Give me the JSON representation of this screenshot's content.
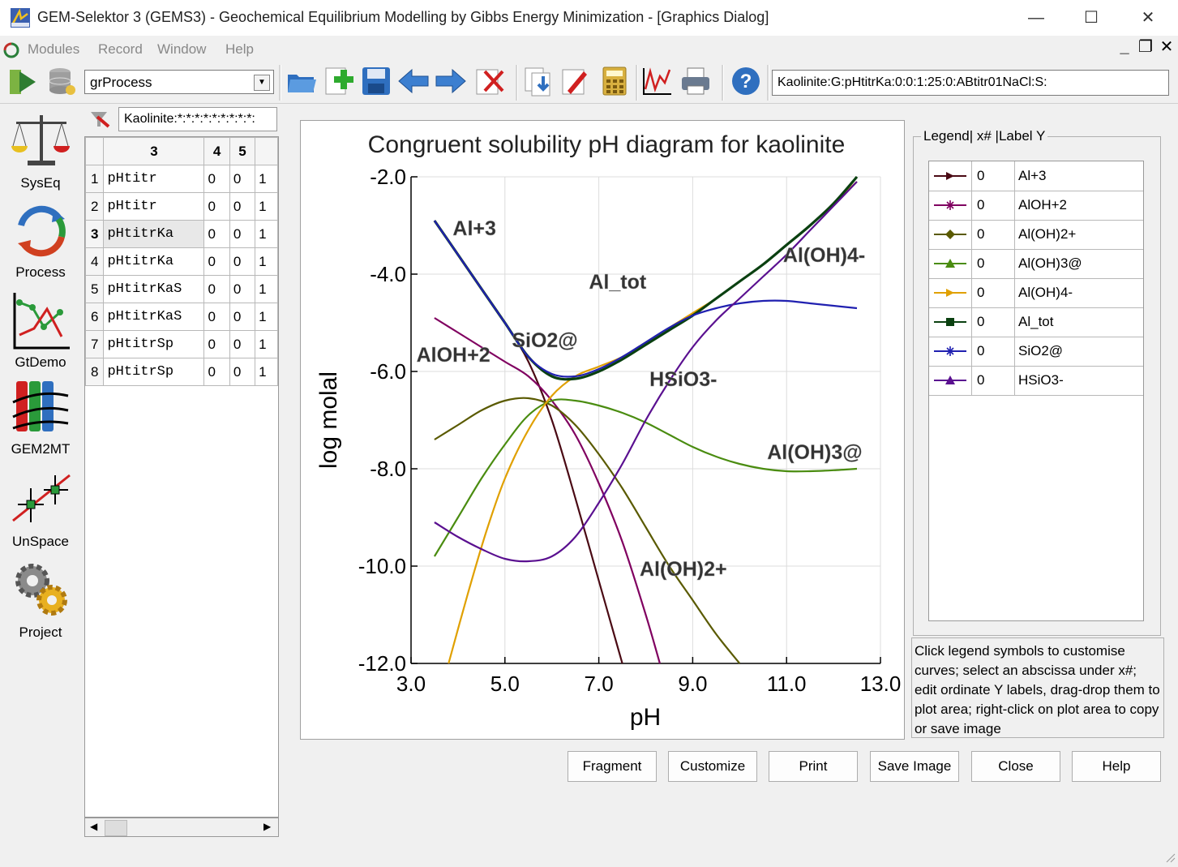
{
  "window": {
    "title": "GEM-Selektor 3 (GEMS3) - Geochemical Equilibrium Modelling by Gibbs Energy Minimization - [Graphics Dialog]",
    "minimize": "—",
    "maximize": "☐",
    "close": "✕"
  },
  "menu": [
    "Modules",
    "Record",
    "Window",
    "Help"
  ],
  "toolbar": {
    "module_select": "grProcess",
    "record_key": "Kaolinite:G:pHtitrKa:0:0:1:25:0:ABtitr01NaCl:S:"
  },
  "nav": [
    {
      "label": "SysEq",
      "icon": "balance-scale-icon"
    },
    {
      "label": "Process",
      "icon": "process-cycle-icon"
    },
    {
      "label": "GtDemo",
      "icon": "gtdemo-chart-icon"
    },
    {
      "label": "GEM2MT",
      "icon": "gem2mt-columns-icon"
    },
    {
      "label": "UnSpace",
      "icon": "unspace-icon"
    },
    {
      "label": "Project",
      "icon": "gears-icon"
    }
  ],
  "records": {
    "filter": "Kaolinite:*:*:*:*:*:*:*:*:*:",
    "headers": [
      "3",
      "4",
      "5"
    ],
    "rows": [
      {
        "n": "1",
        "name": "pHtitr",
        "c4": "0",
        "c5": "0",
        "c6": "1"
      },
      {
        "n": "2",
        "name": "pHtitr",
        "c4": "0",
        "c5": "0",
        "c6": "1"
      },
      {
        "n": "3",
        "name": "pHtitrKa",
        "c4": "0",
        "c5": "0",
        "c6": "1"
      },
      {
        "n": "4",
        "name": "pHtitrKa",
        "c4": "0",
        "c5": "0",
        "c6": "1"
      },
      {
        "n": "5",
        "name": "pHtitrKaS",
        "c4": "0",
        "c5": "0",
        "c6": "1"
      },
      {
        "n": "6",
        "name": "pHtitrKaS",
        "c4": "0",
        "c5": "0",
        "c6": "1"
      },
      {
        "n": "7",
        "name": "pHtitrSp",
        "c4": "0",
        "c5": "0",
        "c6": "1"
      },
      {
        "n": "8",
        "name": "pHtitrSp",
        "c4": "0",
        "c5": "0",
        "c6": "1"
      }
    ]
  },
  "chart_data": {
    "type": "line",
    "title": "Congruent solubility pH diagram for kaolinite",
    "xlabel": "pH",
    "ylabel": "log molal",
    "xlim": [
      3.0,
      13.0
    ],
    "ylim": [
      -12.0,
      -2.0
    ],
    "xticks": [
      "3.0",
      "5.0",
      "7.0",
      "9.0",
      "11.0",
      "13.0"
    ],
    "yticks": [
      "-2.0",
      "-4.0",
      "-6.0",
      "-8.0",
      "-10.0",
      "-12.0"
    ],
    "grid": true,
    "series": [
      {
        "name": "Al+3",
        "color": "#4a0a14",
        "x": [
          3.5,
          4.0,
          4.5,
          5.0,
          5.5,
          6.0,
          6.5,
          7.0,
          7.5
        ],
        "y": [
          -2.9,
          -3.6,
          -4.3,
          -5.0,
          -5.8,
          -7.0,
          -8.6,
          -10.3,
          -12.0
        ]
      },
      {
        "name": "AlOH+2",
        "color": "#800060",
        "x": [
          3.5,
          4.0,
          4.5,
          5.0,
          5.5,
          6.0,
          6.5,
          7.0,
          7.5,
          8.0,
          8.3
        ],
        "y": [
          -4.9,
          -5.2,
          -5.5,
          -5.8,
          -6.1,
          -6.6,
          -7.3,
          -8.3,
          -9.5,
          -11.0,
          -12.0
        ]
      },
      {
        "name": "Al(OH)2+",
        "color": "#5a5a00",
        "x": [
          3.5,
          4.0,
          4.5,
          5.0,
          5.5,
          6.0,
          6.5,
          7.0,
          7.5,
          8.0,
          8.5,
          9.0,
          9.5,
          10.0
        ],
        "y": [
          -7.4,
          -7.1,
          -6.8,
          -6.6,
          -6.55,
          -6.7,
          -7.1,
          -7.7,
          -8.4,
          -9.2,
          -10.0,
          -10.7,
          -11.4,
          -12.0
        ]
      },
      {
        "name": "Al(OH)3@",
        "color": "#4a8c10",
        "x": [
          3.5,
          4.0,
          4.5,
          5.0,
          5.5,
          6.0,
          6.5,
          7.0,
          7.5,
          8.0,
          8.5,
          9.0,
          9.5,
          10.0,
          10.5,
          11.0,
          11.5,
          12.0,
          12.5
        ],
        "y": [
          -9.8,
          -9.0,
          -8.2,
          -7.5,
          -6.9,
          -6.6,
          -6.6,
          -6.7,
          -6.85,
          -7.05,
          -7.3,
          -7.55,
          -7.75,
          -7.9,
          -8.0,
          -8.05,
          -8.05,
          -8.03,
          -8.0
        ]
      },
      {
        "name": "Al(OH)4-",
        "color": "#e0a000",
        "x": [
          3.8,
          4.2,
          4.6,
          5.0,
          5.5,
          6.0,
          6.5,
          7.0,
          7.5,
          8.0,
          8.5,
          9.0,
          9.5,
          10.0,
          10.5,
          11.0,
          11.5,
          12.0,
          12.5
        ],
        "y": [
          -12.0,
          -10.6,
          -9.3,
          -8.2,
          -7.2,
          -6.5,
          -6.1,
          -5.9,
          -5.7,
          -5.4,
          -5.1,
          -4.8,
          -4.5,
          -4.15,
          -3.8,
          -3.4,
          -3.0,
          -2.55,
          -2.1
        ]
      },
      {
        "name": "Al_tot",
        "color": "#0a4010",
        "x": [
          3.5,
          4.0,
          4.5,
          5.0,
          5.5,
          6.0,
          6.5,
          7.0,
          7.5,
          8.0,
          8.5,
          9.0,
          9.5,
          10.0,
          10.5,
          11.0,
          11.5,
          12.0,
          12.5
        ],
        "y": [
          -2.9,
          -3.6,
          -4.3,
          -5.0,
          -5.7,
          -6.1,
          -6.15,
          -6.0,
          -5.75,
          -5.45,
          -5.15,
          -4.85,
          -4.5,
          -4.15,
          -3.8,
          -3.4,
          -3.0,
          -2.55,
          -2.0
        ]
      },
      {
        "name": "SiO2@",
        "color": "#2020b0",
        "x": [
          3.5,
          4.0,
          4.5,
          5.0,
          5.5,
          6.0,
          6.5,
          7.0,
          7.5,
          8.0,
          8.5,
          9.0,
          9.5,
          10.0,
          10.5,
          11.0,
          11.5,
          12.0,
          12.5
        ],
        "y": [
          -2.9,
          -3.6,
          -4.3,
          -5.0,
          -5.7,
          -6.05,
          -6.1,
          -5.95,
          -5.7,
          -5.4,
          -5.1,
          -4.85,
          -4.7,
          -4.6,
          -4.55,
          -4.55,
          -4.6,
          -4.65,
          -4.7
        ]
      },
      {
        "name": "HSiO3-",
        "color": "#5a1090",
        "x": [
          3.5,
          4.0,
          4.5,
          5.0,
          5.5,
          6.0,
          6.5,
          7.0,
          7.5,
          8.0,
          8.5,
          9.0,
          9.5,
          10.0,
          10.5,
          11.0,
          11.5,
          12.0,
          12.5
        ],
        "y": [
          -9.1,
          -9.4,
          -9.65,
          -9.85,
          -9.9,
          -9.8,
          -9.4,
          -8.7,
          -7.9,
          -7.0,
          -6.2,
          -5.5,
          -4.95,
          -4.5,
          -4.05,
          -3.6,
          -3.1,
          -2.6,
          -2.1
        ]
      }
    ],
    "annotations": [
      {
        "text": "Al+3",
        "x": 4.35,
        "y": -3.2
      },
      {
        "text": "Al_tot",
        "x": 7.4,
        "y": -4.3
      },
      {
        "text": "Al(OH)4-",
        "x": 11.8,
        "y": -3.75
      },
      {
        "text": "SiO2@",
        "x": 5.85,
        "y": -5.5
      },
      {
        "text": "AlOH+2",
        "x": 3.9,
        "y": -5.8
      },
      {
        "text": "HSiO3-",
        "x": 8.8,
        "y": -6.3
      },
      {
        "text": "Al(OH)3@",
        "x": 11.6,
        "y": -7.8
      },
      {
        "text": "Al(OH)2+",
        "x": 8.8,
        "y": -10.2
      }
    ]
  },
  "legend": {
    "title": "Legend| x# |Label Y",
    "items": [
      {
        "x": "0",
        "label": "Al+3",
        "color": "#4a0a14",
        "marker": "triangle-right"
      },
      {
        "x": "0",
        "label": "AlOH+2",
        "color": "#800060",
        "marker": "star"
      },
      {
        "x": "0",
        "label": "Al(OH)2+",
        "color": "#5a5a00",
        "marker": "diamond"
      },
      {
        "x": "0",
        "label": "Al(OH)3@",
        "color": "#4a8c10",
        "marker": "triangle-up"
      },
      {
        "x": "0",
        "label": "Al(OH)4-",
        "color": "#e0a000",
        "marker": "triangle-right"
      },
      {
        "x": "0",
        "label": "Al_tot",
        "color": "#0a4010",
        "marker": "square"
      },
      {
        "x": "0",
        "label": "SiO2@",
        "color": "#2020b0",
        "marker": "star"
      },
      {
        "x": "0",
        "label": "HSiO3-",
        "color": "#5a1090",
        "marker": "triangle-up"
      }
    ],
    "hint": "Click legend symbols to customise curves; select an abscissa under x#; edit ordinate Y labels, drag-drop them to plot area; right-click on plot area to copy or save image"
  },
  "buttons": {
    "fragment": "Fragment",
    "customize": "Customize",
    "print": "Print",
    "save_image": "Save Image",
    "close": "Close",
    "help": "Help"
  }
}
